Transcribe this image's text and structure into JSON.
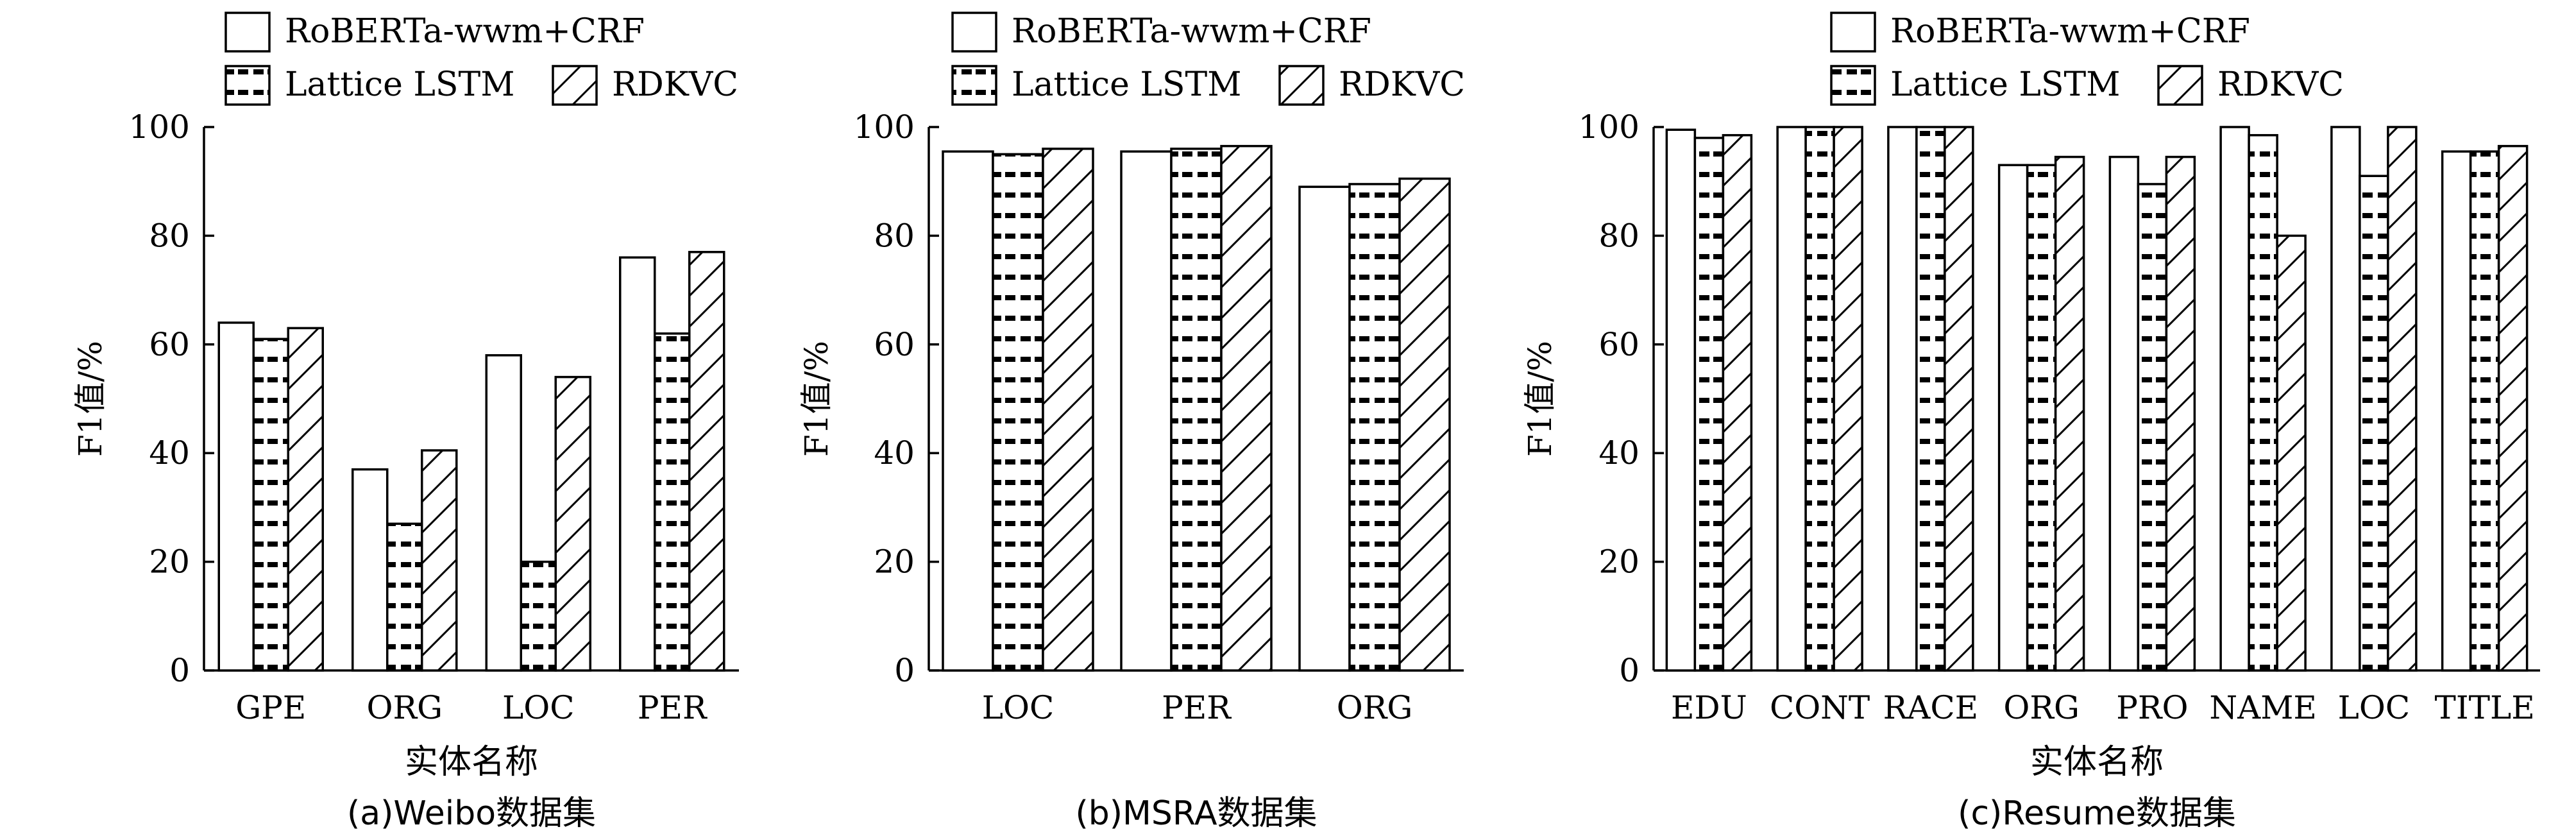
{
  "legend": {
    "roberta": "RoBERTa-wwm+CRF",
    "lattice": "Lattice LSTM",
    "rdkvc": "RDKVC"
  },
  "chart_data": [
    {
      "type": "bar",
      "caption": "(a)Weibo数据集",
      "xlabel": "实体名称",
      "ylabel": "F1值/%",
      "ylim": [
        0,
        100
      ],
      "yticks": [
        "0",
        "20",
        "40",
        "60",
        "80",
        "100"
      ],
      "categories": [
        "GPE",
        "ORG",
        "LOC",
        "PER"
      ],
      "series": [
        {
          "name": "RoBERTa-wwm+CRF",
          "pattern": "blank",
          "values": [
            64,
            37,
            58,
            76
          ]
        },
        {
          "name": "Lattice LSTM",
          "pattern": "dash",
          "values": [
            61,
            27,
            20,
            62
          ]
        },
        {
          "name": "RDKVC",
          "pattern": "hatch",
          "values": [
            63,
            40.5,
            54,
            77
          ]
        }
      ]
    },
    {
      "type": "bar",
      "caption": "(b)MSRA数据集",
      "xlabel": "",
      "ylabel": "F1值/%",
      "ylim": [
        0,
        100
      ],
      "yticks": [
        "0",
        "20",
        "40",
        "60",
        "80",
        "100"
      ],
      "categories": [
        "LOC",
        "PER",
        "ORG"
      ],
      "series": [
        {
          "name": "RoBERTa-wwm+CRF",
          "pattern": "blank",
          "values": [
            95.5,
            95.5,
            89
          ]
        },
        {
          "name": "Lattice LSTM",
          "pattern": "dash",
          "values": [
            95,
            96,
            89.5
          ]
        },
        {
          "name": "RDKVC",
          "pattern": "hatch",
          "values": [
            96,
            96.5,
            90.5
          ]
        }
      ]
    },
    {
      "type": "bar",
      "caption": "(c)Resume数据集",
      "xlabel": "实体名称",
      "ylabel": "F1值/%",
      "ylim": [
        0,
        100
      ],
      "yticks": [
        "0",
        "20",
        "40",
        "60",
        "80",
        "100"
      ],
      "categories": [
        "EDU",
        "CONT",
        "RACE",
        "ORG",
        "PRO",
        "NAME",
        "LOC",
        "TITLE"
      ],
      "series": [
        {
          "name": "RoBERTa-wwm+CRF",
          "pattern": "blank",
          "values": [
            99.5,
            100,
            100,
            93,
            94.5,
            100,
            100,
            95.5
          ]
        },
        {
          "name": "Lattice LSTM",
          "pattern": "dash",
          "values": [
            98,
            100,
            100,
            93,
            89.5,
            98.5,
            91,
            95.5
          ]
        },
        {
          "name": "RDKVC",
          "pattern": "hatch",
          "values": [
            98.5,
            100,
            100,
            94.5,
            94.5,
            80,
            100,
            96.5
          ]
        }
      ]
    }
  ]
}
